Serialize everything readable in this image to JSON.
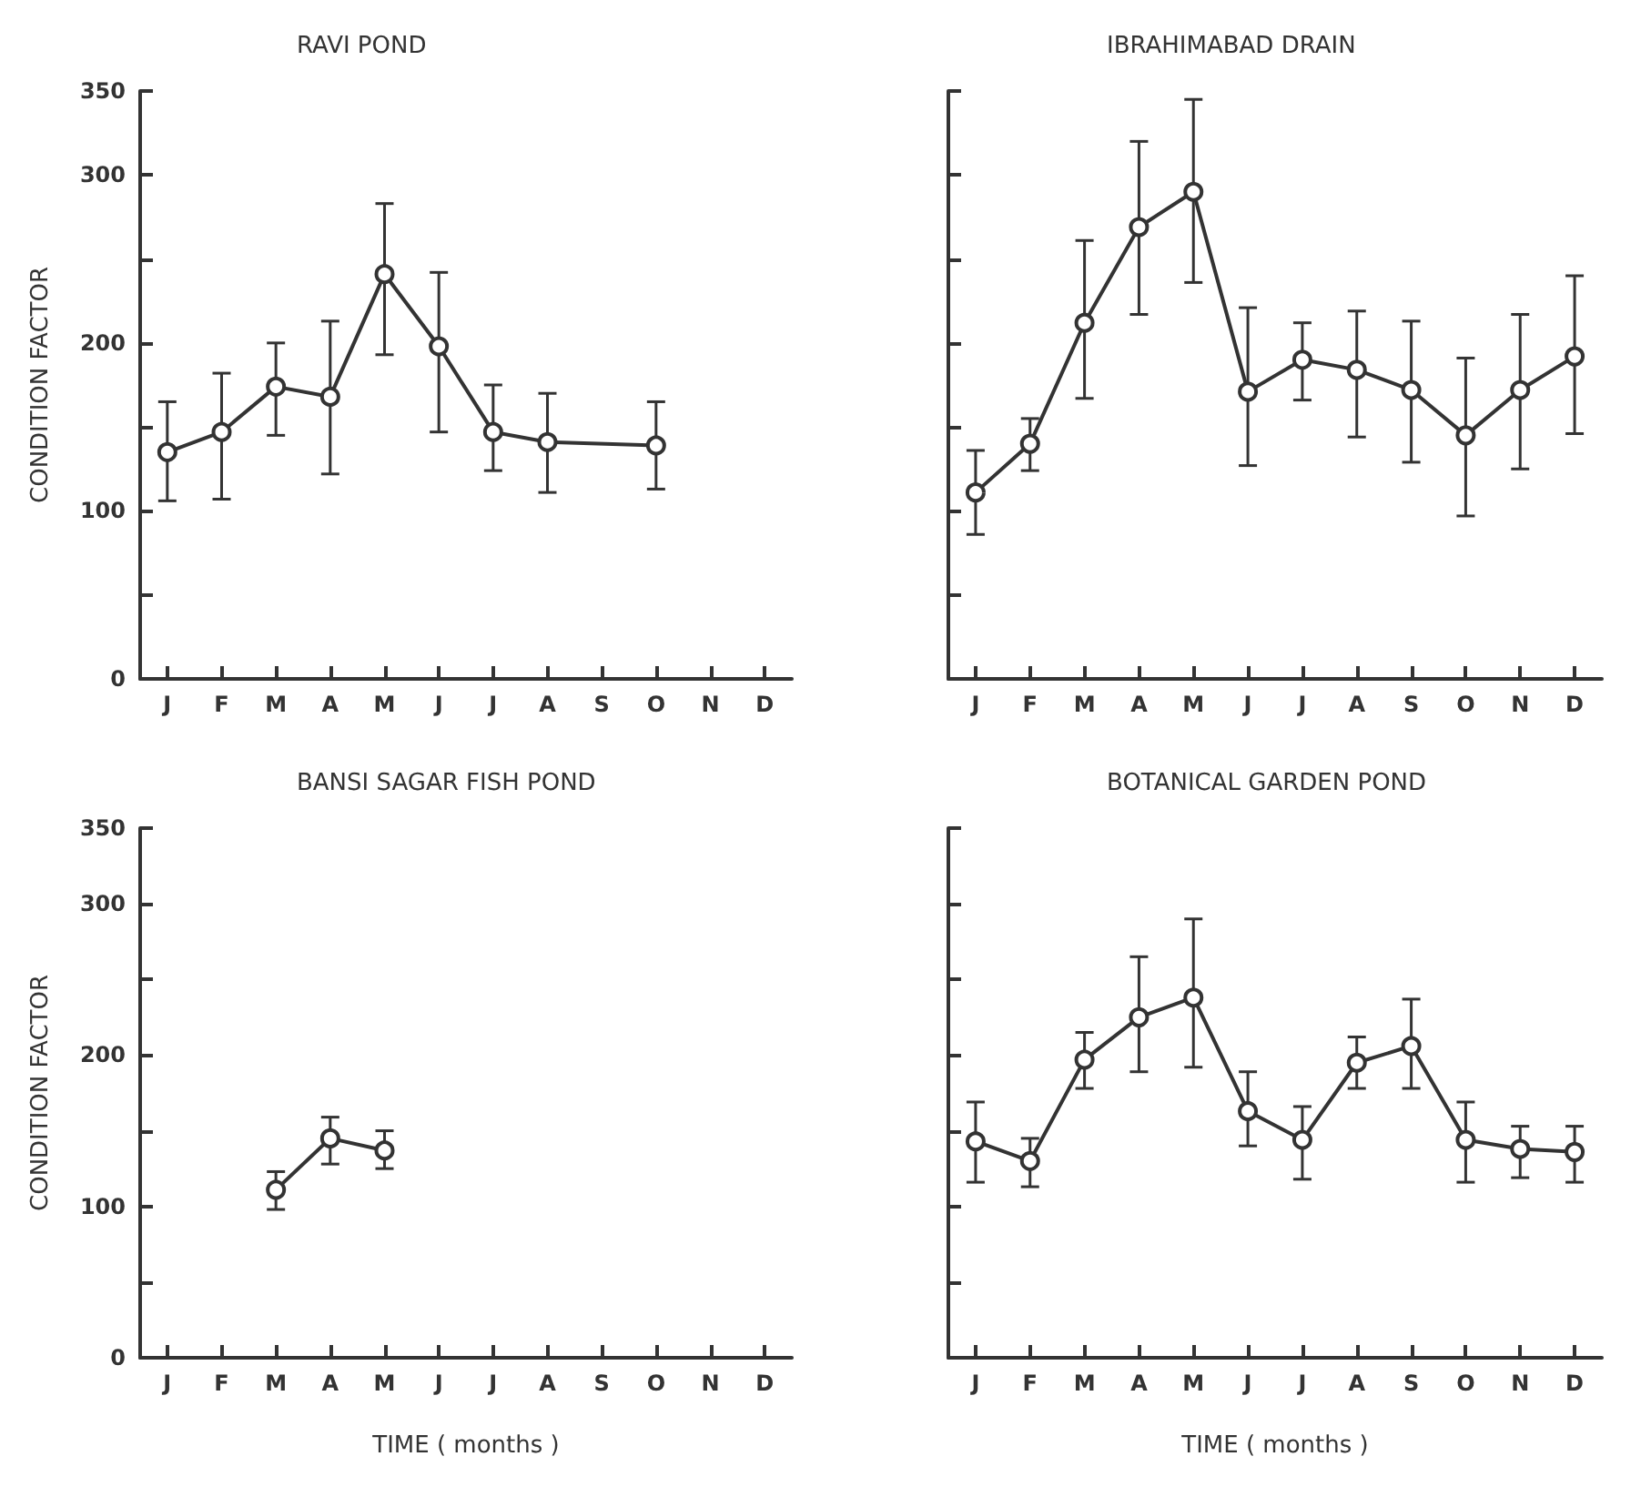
{
  "chart_data": [
    {
      "type": "line",
      "title": "RAVI POND",
      "ylabel": "CONDITION FACTOR",
      "categories": [
        "J",
        "F",
        "M",
        "A",
        "M",
        "J",
        "J",
        "A",
        "S",
        "O",
        "N",
        "D"
      ],
      "series": [
        {
          "color": "#333333",
          "values": [
            135,
            147,
            174,
            168,
            241,
            198,
            147,
            141,
            null,
            139,
            null,
            null
          ],
          "errors": [
            [
              106,
              165
            ],
            [
              107,
              182
            ],
            [
              145,
              200
            ],
            [
              122,
              213
            ],
            [
              193,
              283
            ],
            [
              147,
              242
            ],
            [
              124,
              175
            ],
            [
              111,
              170
            ],
            null,
            [
              113,
              165
            ],
            null,
            null
          ]
        }
      ],
      "ylim": [
        0,
        350
      ],
      "yticks": [
        0,
        {
          "value": 50,
          "label": null
        },
        100,
        {
          "value": 150,
          "label": null
        },
        200,
        {
          "value": 250,
          "label": null
        },
        300,
        350
      ],
      "grid": false,
      "marker": "circle",
      "line_style": "solid"
    },
    {
      "type": "line",
      "title": "IBRAHIMABAD DRAIN",
      "categories": [
        "J",
        "F",
        "M",
        "A",
        "M",
        "J",
        "J",
        "A",
        "S",
        "O",
        "N",
        "D"
      ],
      "series": [
        {
          "color": "#333333",
          "values": [
            111,
            140,
            212,
            269,
            290,
            171,
            190,
            184,
            172,
            145,
            172,
            192
          ],
          "errors": [
            [
              86,
              136
            ],
            [
              124,
              155
            ],
            [
              167,
              261
            ],
            [
              217,
              320
            ],
            [
              236,
              345
            ],
            [
              127,
              221
            ],
            [
              166,
              212
            ],
            [
              144,
              219
            ],
            [
              129,
              213
            ],
            [
              97,
              191
            ],
            [
              125,
              217
            ],
            [
              146,
              240
            ]
          ]
        }
      ],
      "ylim": [
        0,
        350
      ],
      "yticks": [
        0,
        50,
        100,
        150,
        200,
        250,
        300,
        350
      ],
      "tick_labels": "x",
      "grid": false,
      "marker": "circle",
      "line_style": "solid"
    },
    {
      "type": "line",
      "title": "BANSI SAGAR FISH POND",
      "ylabel": "CONDITION FACTOR",
      "xlabel": "TIME ( months )",
      "categories": [
        "J",
        "F",
        "M",
        "A",
        "M",
        "J",
        "J",
        "A",
        "S",
        "O",
        "N",
        "D"
      ],
      "series": [
        {
          "color": "#333333",
          "values": [
            null,
            null,
            111,
            145,
            137,
            null,
            null,
            null,
            null,
            null,
            null,
            null
          ],
          "errors": [
            null,
            null,
            [
              98,
              123
            ],
            [
              128,
              159
            ],
            [
              125,
              150
            ],
            null,
            null,
            null,
            null,
            null,
            null,
            null
          ]
        }
      ],
      "ylim": [
        0,
        350
      ],
      "yticks": [
        0,
        {
          "value": 50,
          "label": null
        },
        100,
        {
          "value": 150,
          "label": null
        },
        200,
        {
          "value": 250,
          "label": null
        },
        300,
        350
      ],
      "grid": false,
      "marker": "circle",
      "line_style": "solid"
    },
    {
      "type": "line",
      "title": "BOTANICAL GARDEN POND",
      "xlabel": "TIME ( months )",
      "categories": [
        "J",
        "F",
        "M",
        "A",
        "M",
        "J",
        "J",
        "A",
        "S",
        "O",
        "N",
        "D"
      ],
      "series": [
        {
          "color": "#333333",
          "values": [
            143,
            130,
            197,
            225,
            238,
            163,
            144,
            195,
            206,
            144,
            138,
            136
          ],
          "errors": [
            [
              116,
              169
            ],
            [
              113,
              145
            ],
            [
              178,
              215
            ],
            [
              189,
              265
            ],
            [
              192,
              290
            ],
            [
              140,
              189
            ],
            [
              118,
              166
            ],
            [
              178,
              212
            ],
            [
              178,
              237
            ],
            [
              116,
              169
            ],
            [
              119,
              153
            ],
            [
              116,
              153
            ]
          ]
        }
      ],
      "ylim": [
        0,
        350
      ],
      "yticks": [
        0,
        50,
        100,
        150,
        200,
        250,
        300,
        350
      ],
      "tick_labels": "x",
      "grid": false,
      "marker": "circle",
      "line_style": "solid"
    }
  ]
}
